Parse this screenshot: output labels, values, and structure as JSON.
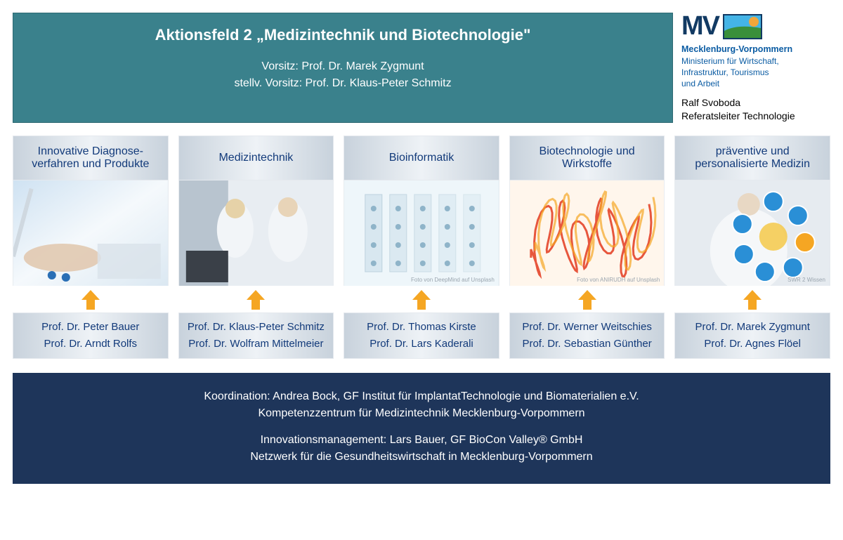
{
  "header": {
    "title": "Aktionsfeld 2 „Medizintechnik und Biotechnologie\"",
    "chair_label": "Vorsitz: Prof. Dr. Marek Zygmunt",
    "vice_label": "stellv. Vorsitz: Prof. Dr. Klaus-Peter Schmitz",
    "bg_color": "#3a818c"
  },
  "logo": {
    "mv": "MV",
    "state": "Mecklenburg-Vorpommern",
    "ministry_l1": "Ministerium für Wirtschaft,",
    "ministry_l2": "Infrastruktur, Tourismus",
    "ministry_l3": "und Arbeit",
    "contact_name": "Ralf Svoboda",
    "contact_role": "Referatsleiter Technologie",
    "flag_colors": {
      "sky": "#44b4e6",
      "sun": "#f1a63a",
      "grass": "#3a8f3a",
      "border": "#123a63"
    }
  },
  "columns": [
    {
      "title": "Innovative Diagnose-\nverfahren und Produkte",
      "people": [
        "Prof. Dr. Peter Bauer",
        "Prof. Dr. Arndt Rolfs"
      ],
      "img_class": "img1",
      "credit": ""
    },
    {
      "title": "Medizintechnik",
      "people": [
        "Prof. Dr. Klaus-Peter Schmitz",
        "Prof. Dr. Wolfram Mittelmeier"
      ],
      "img_class": "img2",
      "credit": ""
    },
    {
      "title": "Bioinformatik",
      "people": [
        "Prof. Dr. Thomas Kirste",
        "Prof. Dr. Lars Kaderali"
      ],
      "img_class": "img3",
      "credit": "Foto von DeepMind auf Unsplash"
    },
    {
      "title": "Biotechnologie und Wirkstoffe",
      "people": [
        "Prof. Dr. Werner Weitschies",
        "Prof. Dr. Sebastian Günther"
      ],
      "img_class": "img4",
      "credit": "Foto von ANIRUDH auf Unsplash"
    },
    {
      "title": "präventive und personalisierte Medizin",
      "people": [
        "Prof. Dr. Marek Zygmunt",
        "Prof. Dr. Agnes Flöel"
      ],
      "img_class": "img5",
      "credit": "SWR 2 Wissen"
    }
  ],
  "arrow_color": "#f5a623",
  "footer": {
    "line1": "Koordination: Andrea Bock, GF Institut für ImplantatTechnologie und Biomaterialien e.V.",
    "line2": "Kompetenzzentrum für Medizintechnik Mecklenburg-Vorpommern",
    "line3": "Innovationsmanagement: Lars Bauer, GF BioCon Valley® GmbH",
    "line4": "Netzwerk für die Gesundheitswirtschaft in Mecklenburg-Vorpommern",
    "bg_color": "#1e355a"
  },
  "style": {
    "title_text_color": "#123a7a",
    "panel_gradient": [
      "#c8d2dc",
      "#eef2f6",
      "#c8d2dc"
    ]
  }
}
